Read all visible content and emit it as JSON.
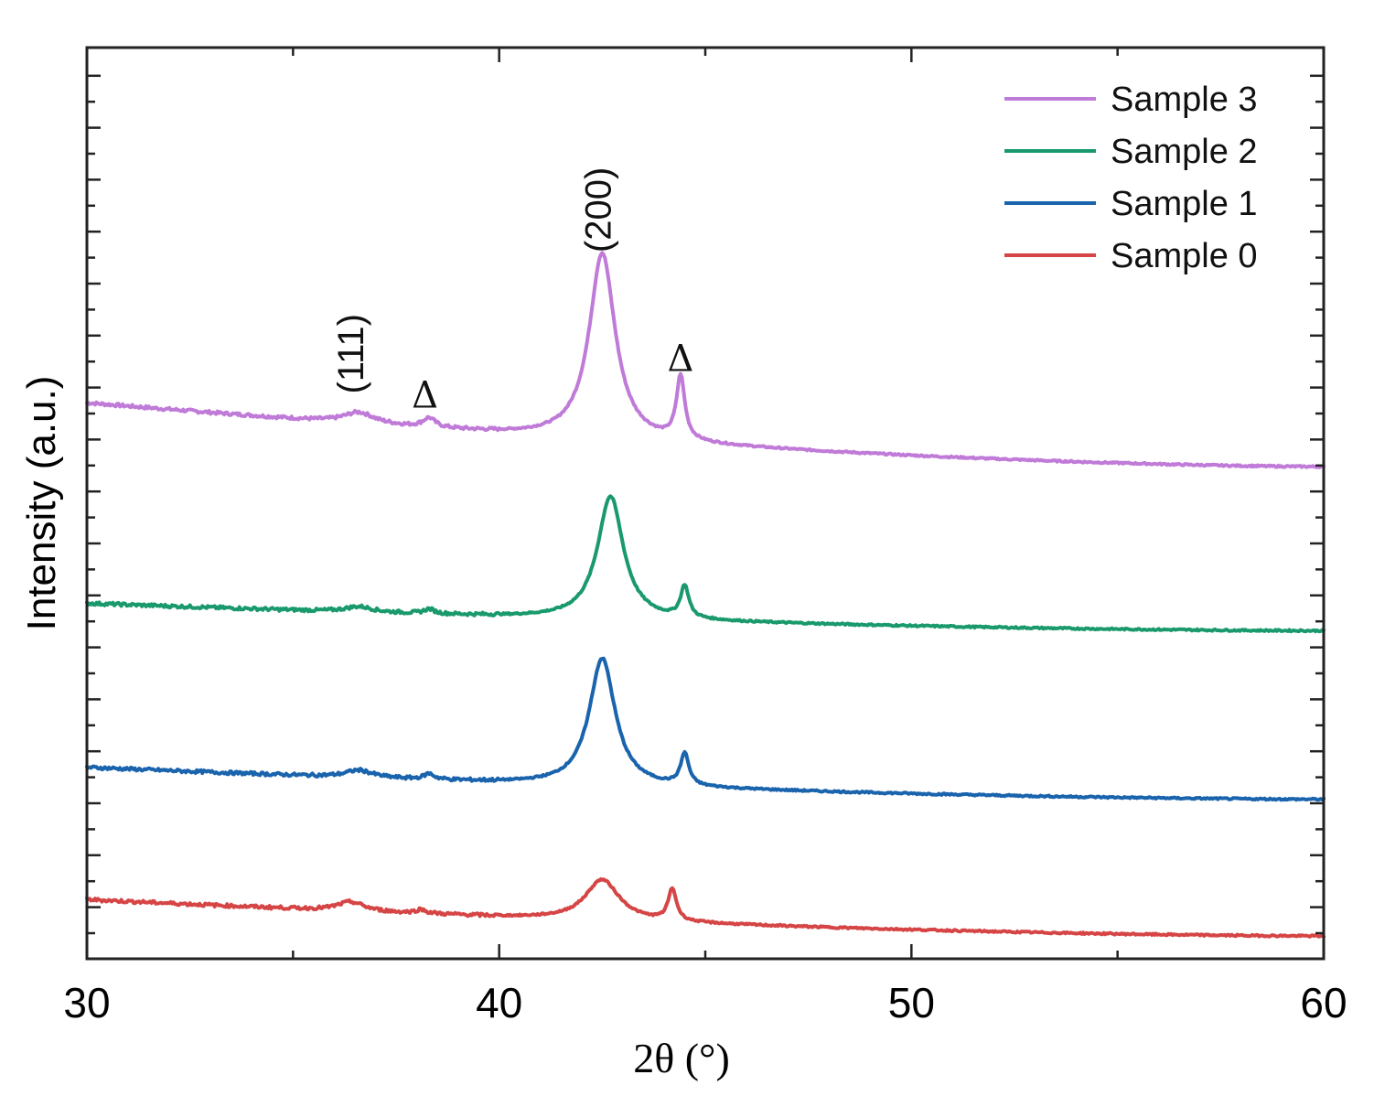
{
  "chart_data": {
    "type": "line",
    "title": "",
    "xlabel": "2θ (°)",
    "ylabel": "Intensity (a.u.)",
    "xlim": [
      30,
      60
    ],
    "ylim": [
      0,
      100
    ],
    "xticks": [
      30,
      40,
      50,
      60
    ],
    "yticks_labeled": false,
    "grid": false,
    "legend": {
      "placement": "top-right",
      "entries": [
        "Sample 3",
        "Sample 2",
        "Sample 1",
        "Sample 0"
      ]
    },
    "series": [
      {
        "name": "Sample 3",
        "color": "#c07ad8",
        "baseline_start": 61,
        "baseline_end": 54,
        "peaks": [
          {
            "x": 36.6,
            "h": 1.2,
            "w": 0.45
          },
          {
            "x": 38.3,
            "h": 1.0,
            "w": 0.18
          },
          {
            "x": 42.5,
            "h": 20.5,
            "w": 0.38
          },
          {
            "x": 44.4,
            "h": 7.0,
            "w": 0.12
          }
        ]
      },
      {
        "name": "Sample 2",
        "color": "#1a9a6c",
        "baseline_start": 39,
        "baseline_end": 36,
        "peaks": [
          {
            "x": 36.6,
            "h": 0.6,
            "w": 0.4
          },
          {
            "x": 38.3,
            "h": 0.5,
            "w": 0.15
          },
          {
            "x": 42.7,
            "h": 13.5,
            "w": 0.38
          },
          {
            "x": 44.5,
            "h": 3.5,
            "w": 0.12
          }
        ]
      },
      {
        "name": "Sample 1",
        "color": "#1a63ad",
        "baseline_start": 21,
        "baseline_end": 17.5,
        "peaks": [
          {
            "x": 36.6,
            "h": 0.8,
            "w": 0.4
          },
          {
            "x": 38.3,
            "h": 0.6,
            "w": 0.15
          },
          {
            "x": 42.5,
            "h": 14.0,
            "w": 0.38
          },
          {
            "x": 44.5,
            "h": 3.5,
            "w": 0.12
          }
        ]
      },
      {
        "name": "Sample 0",
        "color": "#d64545",
        "baseline_start": 6.5,
        "baseline_end": 2.5,
        "peaks": [
          {
            "x": 36.4,
            "h": 1.0,
            "w": 0.4
          },
          {
            "x": 38.1,
            "h": 0.4,
            "w": 0.15
          },
          {
            "x": 42.5,
            "h": 4.5,
            "w": 0.5
          },
          {
            "x": 44.2,
            "h": 3.5,
            "w": 0.12
          }
        ]
      }
    ],
    "annotations": [
      {
        "text": "(111)",
        "x": 36.7,
        "y": 62,
        "rotate": true
      },
      {
        "text": "Δ",
        "x": 38.2,
        "y": 60.5,
        "rotate": false
      },
      {
        "text": "(200)",
        "x": 42.7,
        "y": 77.5,
        "rotate": true
      },
      {
        "text": "Δ",
        "x": 44.4,
        "y": 64.5,
        "rotate": false
      }
    ]
  }
}
